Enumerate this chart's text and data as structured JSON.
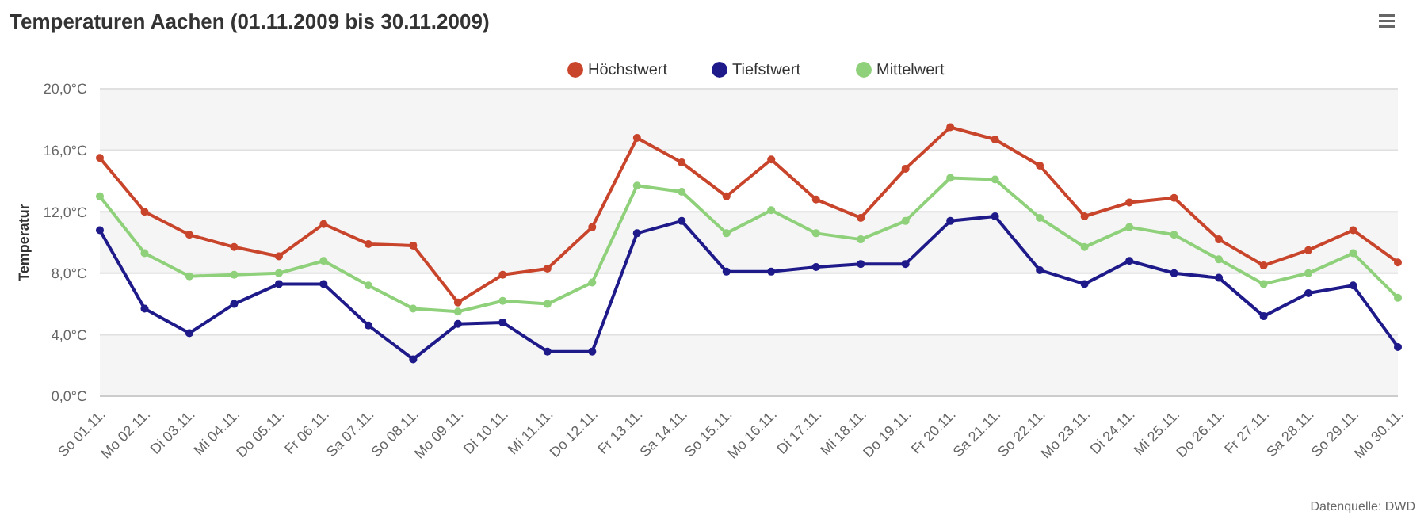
{
  "chart_data": {
    "type": "line",
    "title": "Temperaturen Aachen (01.11.2009 bis 30.11.2009)",
    "ylabel": "Temperatur",
    "categories": [
      "So 01.11.",
      "Mo 02.11.",
      "Di 03.11.",
      "Mi 04.11.",
      "Do 05.11.",
      "Fr 06.11.",
      "Sa 07.11.",
      "So 08.11.",
      "Mo 09.11.",
      "Di 10.11.",
      "Mi 11.11.",
      "Do 12.11.",
      "Fr 13.11.",
      "Sa 14.11.",
      "So 15.11.",
      "Mo 16.11.",
      "Di 17.11.",
      "Mi 18.11.",
      "Do 19.11.",
      "Fr 20.11.",
      "Sa 21.11.",
      "So 22.11.",
      "Mo 23.11.",
      "Di 24.11.",
      "Mi 25.11.",
      "Do 26.11.",
      "Fr 27.11.",
      "Sa 28.11.",
      "So 29.11.",
      "Mo 30.11."
    ],
    "series": [
      {
        "name": "Höchstwert",
        "color": "#c8452c",
        "values": [
          15.5,
          12.0,
          10.5,
          9.7,
          9.1,
          11.2,
          9.9,
          9.8,
          6.1,
          7.9,
          8.3,
          11.0,
          16.8,
          15.2,
          13.0,
          15.4,
          12.8,
          11.6,
          14.8,
          17.5,
          16.7,
          15.0,
          11.7,
          12.6,
          12.9,
          10.2,
          8.5,
          9.5,
          10.8,
          8.7
        ]
      },
      {
        "name": "Tiefstwert",
        "color": "#1f1a8a",
        "values": [
          10.8,
          5.7,
          4.1,
          6.0,
          7.3,
          7.3,
          4.6,
          2.4,
          4.7,
          4.8,
          2.9,
          2.9,
          10.6,
          11.4,
          8.1,
          8.1,
          8.4,
          8.6,
          8.6,
          11.4,
          11.7,
          8.2,
          7.3,
          8.8,
          8.0,
          7.7,
          5.2,
          6.7,
          7.2,
          3.2
        ]
      },
      {
        "name": "Mittelwert",
        "color": "#8fd07a",
        "values": [
          13.0,
          9.3,
          7.8,
          7.9,
          8.0,
          8.8,
          7.2,
          5.7,
          5.5,
          6.2,
          6.0,
          7.4,
          13.7,
          13.3,
          10.6,
          12.1,
          10.6,
          10.2,
          11.4,
          14.2,
          14.1,
          11.6,
          9.7,
          11.0,
          10.5,
          8.9,
          7.3,
          8.0,
          9.3,
          6.4
        ]
      }
    ],
    "ylim": [
      0,
      20
    ],
    "yticks": [
      {
        "value": 0,
        "label": "0,0°C"
      },
      {
        "value": 4,
        "label": "4,0°C"
      },
      {
        "value": 8,
        "label": "8,0°C"
      },
      {
        "value": 12,
        "label": "12,0°C"
      },
      {
        "value": 16,
        "label": "16,0°C"
      },
      {
        "value": 20,
        "label": "20,0°C"
      }
    ],
    "grid": "y",
    "legend": "top",
    "marker": "circle",
    "line_style": "solid",
    "annotations": [
      "Datenquelle: DWD"
    ]
  }
}
